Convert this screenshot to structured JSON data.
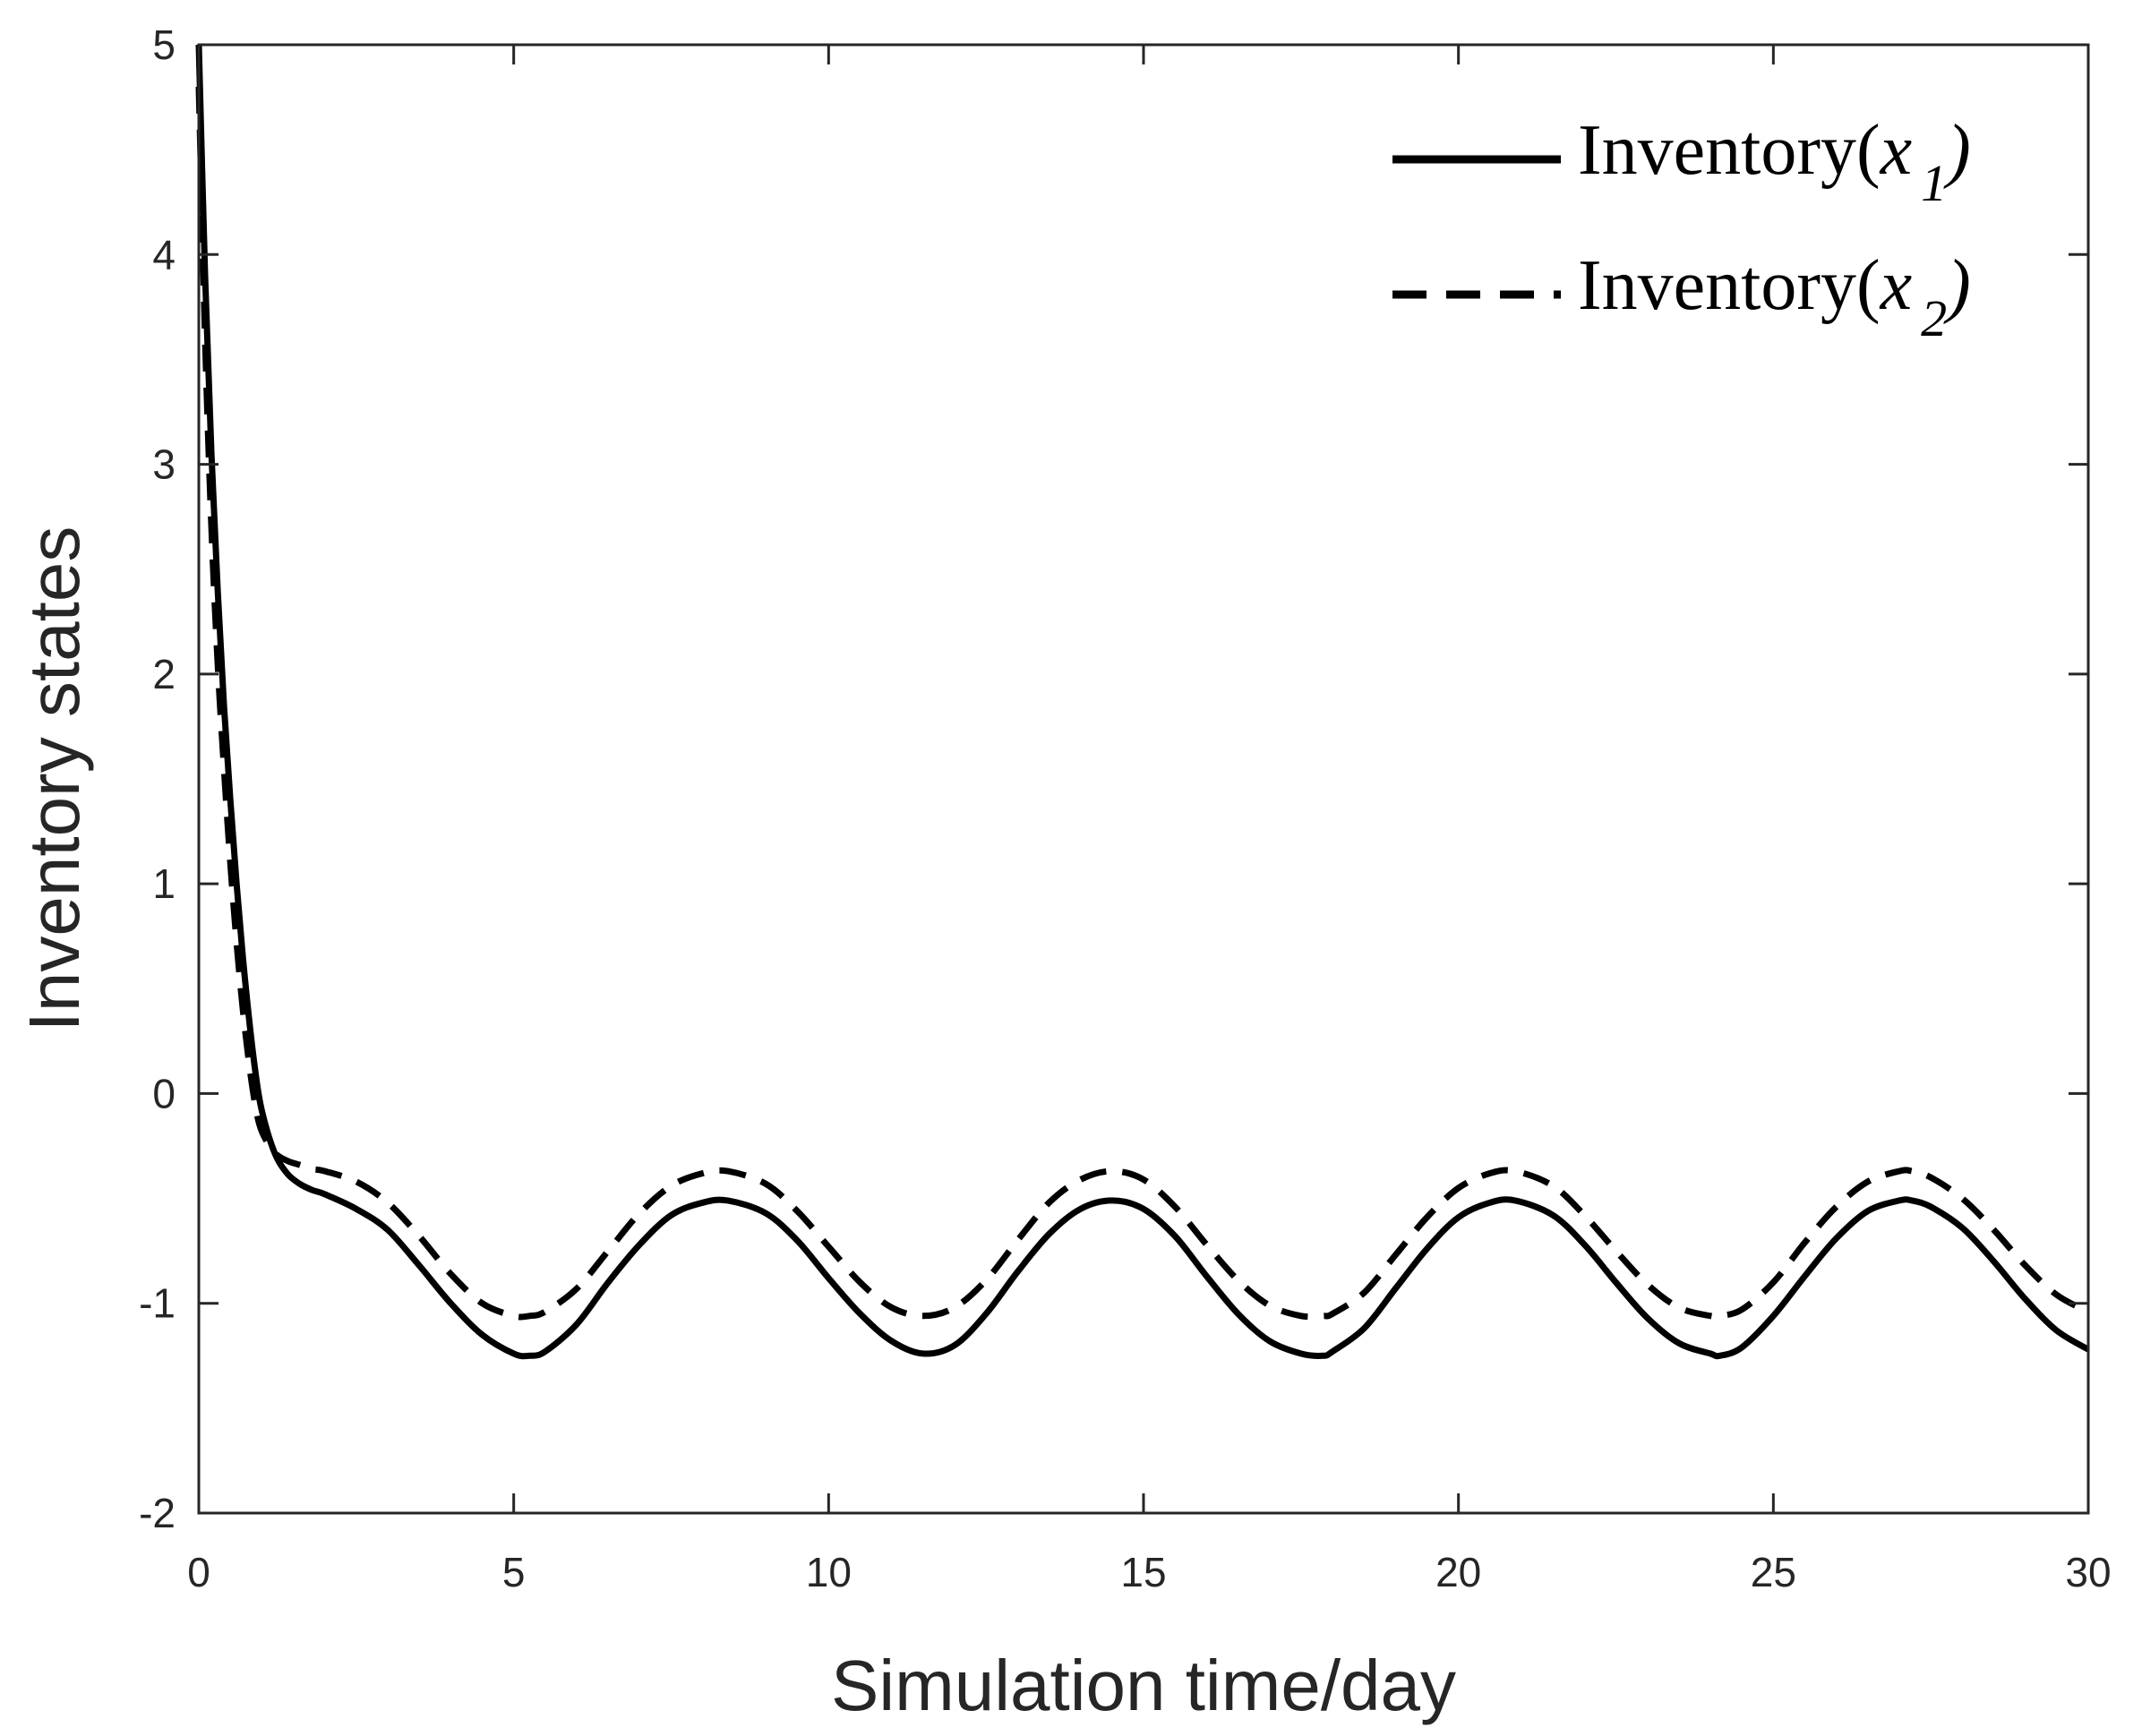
{
  "chart_data": {
    "type": "line",
    "title": "",
    "xlabel": "Simulation time/day",
    "ylabel": "Inventory states",
    "xlim": [
      0,
      30
    ],
    "ylim": [
      -2,
      5
    ],
    "xticks": [
      0,
      5,
      10,
      15,
      20,
      25,
      30
    ],
    "yticks": [
      -2,
      -1,
      0,
      1,
      2,
      3,
      4,
      5
    ],
    "xtick_labels": [
      "0",
      "5",
      "10",
      "15",
      "20",
      "25",
      "30"
    ],
    "ytick_labels": [
      "-2",
      "-1",
      "0",
      "1",
      "2",
      "3",
      "4",
      "5"
    ],
    "grid": false,
    "legend_position": "top-right",
    "series": [
      {
        "name": "Inventory(x1)",
        "legend": {
          "prefix": "Inventory(",
          "var": "x",
          "sub": "1",
          "suffix": ")"
        },
        "style": "solid",
        "color": "#000000",
        "x": [
          0,
          0.1,
          0.2,
          0.3,
          0.4,
          0.5,
          0.6,
          0.7,
          0.8,
          0.9,
          1.0,
          1.2,
          1.4,
          1.6,
          1.8,
          2.0,
          2.5,
          3.0,
          3.5,
          4.0,
          4.5,
          5.0,
          5.25,
          5.5,
          6.0,
          6.5,
          7.0,
          7.5,
          8.0,
          8.4,
          9.0,
          9.5,
          10.0,
          10.5,
          11.0,
          11.5,
          12.0,
          12.5,
          13.0,
          13.5,
          14.0,
          14.5,
          15.0,
          15.5,
          16.0,
          16.5,
          17.0,
          17.5,
          17.85,
          18.0,
          18.5,
          19.0,
          19.5,
          20.0,
          20.5,
          20.9,
          21.5,
          22.0,
          22.5,
          23.0,
          23.5,
          24.0,
          24.15,
          24.5,
          25.0,
          25.5,
          26.0,
          26.5,
          27.0,
          27.2,
          27.5,
          28.0,
          28.5,
          29.0,
          29.5,
          30.0
        ],
        "y": [
          5.0,
          3.9,
          3.05,
          2.4,
          1.85,
          1.4,
          1.0,
          0.65,
          0.35,
          0.1,
          -0.08,
          -0.28,
          -0.38,
          -0.43,
          -0.46,
          -0.48,
          -0.55,
          -0.65,
          -0.82,
          -1.0,
          -1.15,
          -1.24,
          -1.25,
          -1.23,
          -1.1,
          -0.9,
          -0.72,
          -0.58,
          -0.52,
          -0.51,
          -0.57,
          -0.7,
          -0.88,
          -1.05,
          -1.18,
          -1.24,
          -1.2,
          -1.05,
          -0.85,
          -0.67,
          -0.55,
          -0.51,
          -0.55,
          -0.68,
          -0.87,
          -1.05,
          -1.18,
          -1.24,
          -1.25,
          -1.23,
          -1.12,
          -0.93,
          -0.74,
          -0.59,
          -0.52,
          -0.51,
          -0.58,
          -0.72,
          -0.9,
          -1.07,
          -1.19,
          -1.24,
          -1.25,
          -1.21,
          -1.06,
          -0.87,
          -0.69,
          -0.56,
          -0.51,
          -0.51,
          -0.54,
          -0.64,
          -0.8,
          -0.98,
          -1.13,
          -1.22
        ]
      },
      {
        "name": "Inventory(x2)",
        "legend": {
          "prefix": "Inventory(",
          "var": "x",
          "sub": "2",
          "suffix": ")"
        },
        "style": "dashed",
        "color": "#000000",
        "x": [
          0,
          0.1,
          0.2,
          0.3,
          0.4,
          0.5,
          0.6,
          0.7,
          0.8,
          0.9,
          1.0,
          1.2,
          1.4,
          1.6,
          1.8,
          2.0,
          2.5,
          3.0,
          3.5,
          4.0,
          4.5,
          5.0,
          5.25,
          5.5,
          6.0,
          6.5,
          7.0,
          7.5,
          8.0,
          8.4,
          9.0,
          9.5,
          10.0,
          10.5,
          11.0,
          11.5,
          12.0,
          12.5,
          13.0,
          13.5,
          14.0,
          14.5,
          15.0,
          15.5,
          16.0,
          16.5,
          17.0,
          17.5,
          17.85,
          18.0,
          18.5,
          19.0,
          19.5,
          20.0,
          20.5,
          20.9,
          21.5,
          22.0,
          22.5,
          23.0,
          23.5,
          24.0,
          24.15,
          24.5,
          25.0,
          25.5,
          26.0,
          26.5,
          27.0,
          27.2,
          27.5,
          28.0,
          28.5,
          29.0,
          29.5,
          30.0
        ],
        "y": [
          4.8,
          3.6,
          2.7,
          2.05,
          1.55,
          1.1,
          0.72,
          0.4,
          0.14,
          -0.06,
          -0.18,
          -0.28,
          -0.32,
          -0.34,
          -0.36,
          -0.37,
          -0.42,
          -0.52,
          -0.68,
          -0.86,
          -1.0,
          -1.06,
          -1.06,
          -1.04,
          -0.93,
          -0.75,
          -0.57,
          -0.44,
          -0.38,
          -0.37,
          -0.43,
          -0.56,
          -0.73,
          -0.9,
          -1.02,
          -1.06,
          -1.02,
          -0.89,
          -0.7,
          -0.52,
          -0.41,
          -0.37,
          -0.41,
          -0.54,
          -0.72,
          -0.89,
          -1.01,
          -1.06,
          -1.06,
          -1.05,
          -0.95,
          -0.77,
          -0.59,
          -0.45,
          -0.38,
          -0.37,
          -0.44,
          -0.58,
          -0.75,
          -0.91,
          -1.02,
          -1.06,
          -1.06,
          -1.03,
          -0.9,
          -0.71,
          -0.54,
          -0.42,
          -0.37,
          -0.37,
          -0.4,
          -0.5,
          -0.65,
          -0.82,
          -0.96,
          -1.04
        ]
      }
    ]
  }
}
